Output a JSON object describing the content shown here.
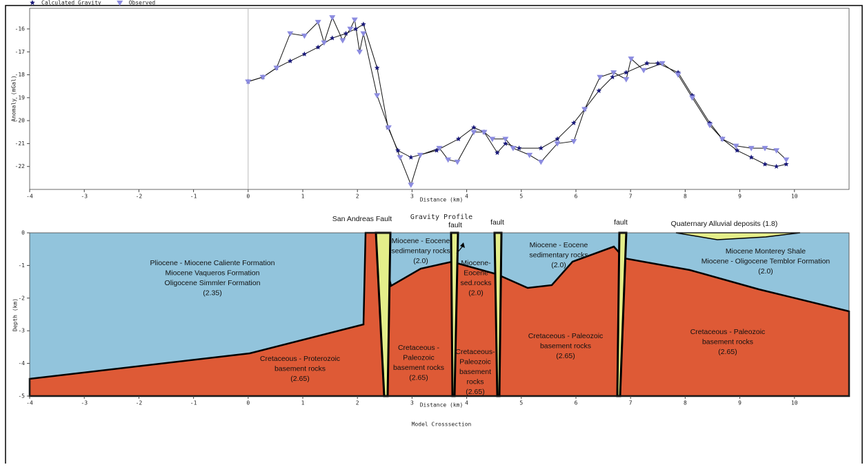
{
  "chart_data": [
    {
      "type": "line",
      "title": "Gravity Profile",
      "xlabel": "Distance (km)",
      "ylabel": "Anomaly (mGal)",
      "xlim": [
        -4,
        11
      ],
      "ylim": [
        -23,
        -15.1
      ],
      "xticks": [
        -4,
        -3,
        -2,
        -1,
        0,
        1,
        2,
        3,
        4,
        5,
        6,
        7,
        8,
        9,
        10
      ],
      "yticks": [
        -16,
        -17,
        -18,
        -19,
        -20,
        -21,
        -22
      ],
      "legend": "top-left",
      "series": [
        {
          "name": "Calculated Gravity",
          "color": "#1a1a7a",
          "marker": "star",
          "x": [
            0,
            0.27,
            0.52,
            0.77,
            1.03,
            1.28,
            1.54,
            1.79,
            1.97,
            2.11,
            2.36,
            2.56,
            2.74,
            2.98,
            3.45,
            3.85,
            4.13,
            4.32,
            4.56,
            4.71,
            4.96,
            5.36,
            5.66,
            5.96,
            6.16,
            6.42,
            6.67,
            6.92,
            7.3,
            7.5,
            7.87,
            8.13,
            8.45,
            8.68,
            8.95,
            9.21,
            9.46,
            9.67,
            9.85
          ],
          "values": [
            -18.3,
            -18.1,
            -17.7,
            -17.4,
            -17.1,
            -16.8,
            -16.4,
            -16.2,
            -16.0,
            -15.8,
            -17.7,
            -20.3,
            -21.3,
            -21.6,
            -21.3,
            -20.8,
            -20.3,
            -20.5,
            -21.4,
            -21.0,
            -21.2,
            -21.2,
            -20.8,
            -20.1,
            -19.5,
            -18.7,
            -18.1,
            -17.9,
            -17.5,
            -17.5,
            -17.9,
            -18.9,
            -20.1,
            -20.8,
            -21.3,
            -21.6,
            -21.9,
            -22.0,
            -21.9
          ]
        },
        {
          "name": "Observed",
          "color": "#8c8ce0",
          "marker": "triangle",
          "x": [
            0,
            0.27,
            0.52,
            0.77,
            1.03,
            1.28,
            1.39,
            1.54,
            1.73,
            1.87,
            1.95,
            2.04,
            2.11,
            2.36,
            2.57,
            2.78,
            2.98,
            3.15,
            3.5,
            3.66,
            3.83,
            4.13,
            4.32,
            4.47,
            4.71,
            4.85,
            5.15,
            5.36,
            5.66,
            5.96,
            6.16,
            6.44,
            6.69,
            6.92,
            7.01,
            7.24,
            7.58,
            7.87,
            8.13,
            8.45,
            8.68,
            8.93,
            9.21,
            9.46,
            9.67,
            9.85
          ],
          "values": [
            -18.3,
            -18.1,
            -17.7,
            -16.2,
            -16.3,
            -15.7,
            -16.6,
            -15.5,
            -16.5,
            -16.0,
            -15.6,
            -17.0,
            -16.2,
            -18.9,
            -20.3,
            -21.6,
            -22.8,
            -21.5,
            -21.2,
            -21.7,
            -21.8,
            -20.5,
            -20.5,
            -20.8,
            -20.8,
            -21.2,
            -21.5,
            -21.8,
            -21.0,
            -20.9,
            -19.5,
            -18.1,
            -17.9,
            -18.2,
            -17.3,
            -17.8,
            -17.5,
            -18.0,
            -19.0,
            -20.2,
            -20.8,
            -21.1,
            -21.2,
            -21.2,
            -21.3,
            -21.7
          ]
        }
      ]
    },
    {
      "type": "cross-section",
      "title": "Model Crosssection",
      "xlabel": "Distance (km)",
      "ylabel": "Depth (km)",
      "xlim": [
        -4,
        11
      ],
      "ylim": [
        -5,
        0
      ],
      "xticks": [
        -4,
        -3,
        -2,
        -1,
        0,
        1,
        2,
        3,
        4,
        5,
        6,
        7,
        8,
        9,
        10
      ],
      "yticks": [
        0,
        -1,
        -2,
        -3,
        -4,
        -5
      ],
      "annotations": [
        "San Andreas Fault",
        "fault",
        "fault",
        "fault",
        "Quaternary Alluvial deposits (1.8)"
      ],
      "units": [
        {
          "lines": [
            "Pliocene - Miocene Caliente Formation",
            "Miocene Vaqueros Formation",
            "Oligocene Simmler Formation",
            "(2.35)"
          ]
        },
        {
          "lines": [
            "Cretaceous - Proterozoic",
            "basement rocks",
            "(2.65)"
          ]
        },
        {
          "lines": [
            "Cretaceous -",
            "Paleozoic",
            "basement rocks",
            "(2.65)"
          ]
        },
        {
          "lines": [
            "Cretaceous-",
            "Paleozoic",
            "basement",
            "rocks",
            "(2.65)"
          ]
        },
        {
          "lines": [
            "Cretaceous - Paleozoic",
            "basement rocks",
            "(2.65)"
          ]
        },
        {
          "lines": [
            "Cretaceous - Paleozoic",
            "basement rocks",
            "(2.65)"
          ]
        },
        {
          "lines": [
            "Miocene - Eocene",
            "sedimentary rocks",
            "(2.0)"
          ]
        },
        {
          "lines": [
            "Miocene-",
            "Eocene",
            "sed.rocks",
            "(2.0)"
          ]
        },
        {
          "lines": [
            "Miocene - Eocene",
            "sedimentary rocks",
            "(2.0)"
          ]
        },
        {
          "lines": [
            "Miocene Monterey Shale",
            "Miocene - Oligocene Temblor Formation",
            "(2.0)"
          ]
        }
      ]
    }
  ]
}
